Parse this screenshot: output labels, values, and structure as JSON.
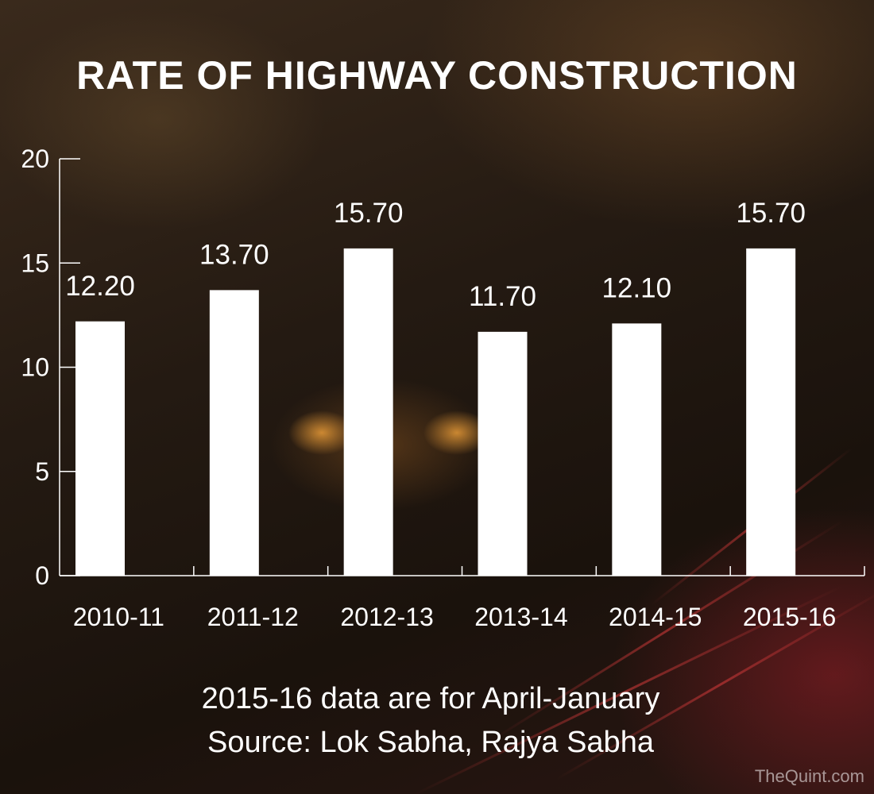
{
  "chart_data": {
    "type": "bar",
    "title": "RATE OF HIGHWAY CONSTRUCTION",
    "categories": [
      "2010-11",
      "2011-12",
      "2012-13",
      "2013-14",
      "2014-15",
      "2015-16"
    ],
    "values": [
      12.2,
      13.7,
      15.7,
      11.7,
      12.1,
      15.7
    ],
    "value_labels": [
      "12.20",
      "13.70",
      "15.70",
      "11.70",
      "12.10",
      "15.70"
    ],
    "ylim": [
      0,
      20
    ],
    "yticks": [
      0,
      5,
      10,
      15,
      20
    ],
    "xlabel": "",
    "ylabel": "",
    "grid": false,
    "bar_color": "#ffffff"
  },
  "footer": {
    "note": "2015-16 data are for April-January",
    "source": "Source: Lok Sabha, Rajya Sabha"
  },
  "watermark": "TheQuint.com",
  "colors": {
    "text": "#ffffff",
    "axis": "#ffffff"
  }
}
